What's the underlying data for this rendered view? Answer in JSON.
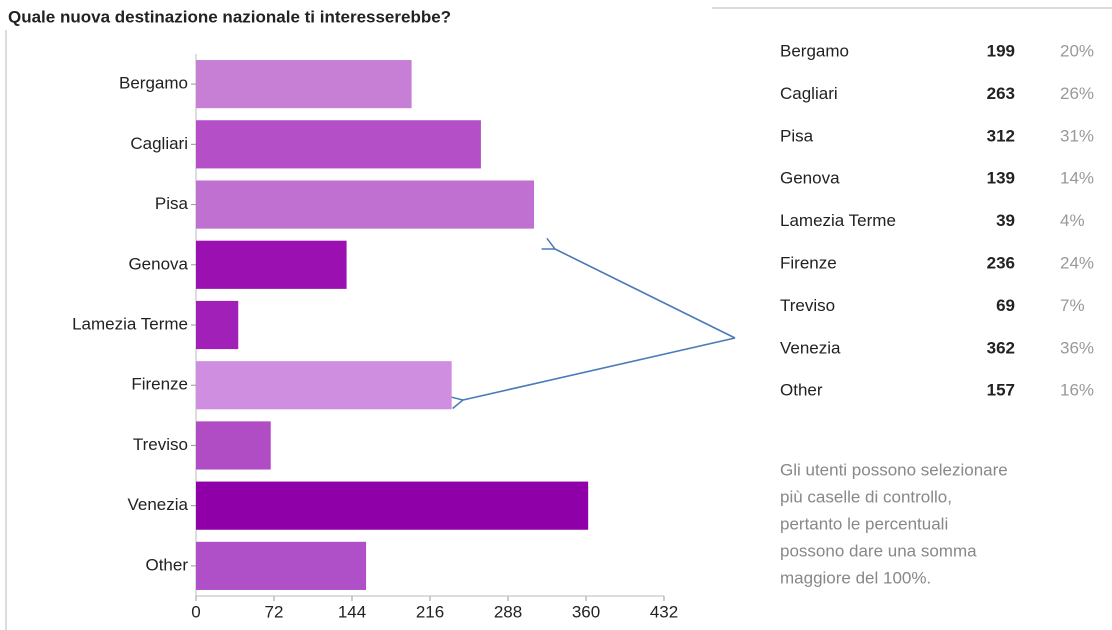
{
  "chart_data": {
    "type": "barh",
    "title": "Quale nuova destinazione nazionale ti interesserebbe?",
    "categories": [
      "Bergamo",
      "Cagliari",
      "Pisa",
      "Genova",
      "Lamezia Terme",
      "Firenze",
      "Treviso",
      "Venezia",
      "Other"
    ],
    "values": [
      199,
      263,
      312,
      139,
      39,
      236,
      69,
      362,
      157
    ],
    "colors": [
      "#c77fd6",
      "#b44fc8",
      "#c070d0",
      "#9a10b0",
      "#a020b8",
      "#d08ee0",
      "#b04cc4",
      "#9000a8",
      "#b050c8"
    ],
    "xlim": [
      0,
      432
    ],
    "xticks": [
      0,
      72,
      144,
      216,
      288,
      360,
      432
    ]
  },
  "summary_table": {
    "rows": [
      [
        "Bergamo",
        "199",
        "20%"
      ],
      [
        "Cagliari",
        "263",
        "26%"
      ],
      [
        "Pisa",
        "312",
        "31%"
      ],
      [
        "Genova",
        "139",
        "14%"
      ],
      [
        "Lamezia Terme",
        "39",
        "4%"
      ],
      [
        "Firenze",
        "236",
        "24%"
      ],
      [
        "Treviso",
        "69",
        "7%"
      ],
      [
        "Venezia",
        "362",
        "36%"
      ],
      [
        "Other",
        "157",
        "16%"
      ]
    ]
  },
  "note": {
    "lines": [
      "Gli utenti possono selezionare",
      "più caselle di controllo,",
      "pertanto le percentuali",
      "possono dare una somma",
      "maggiore del 100%."
    ]
  }
}
